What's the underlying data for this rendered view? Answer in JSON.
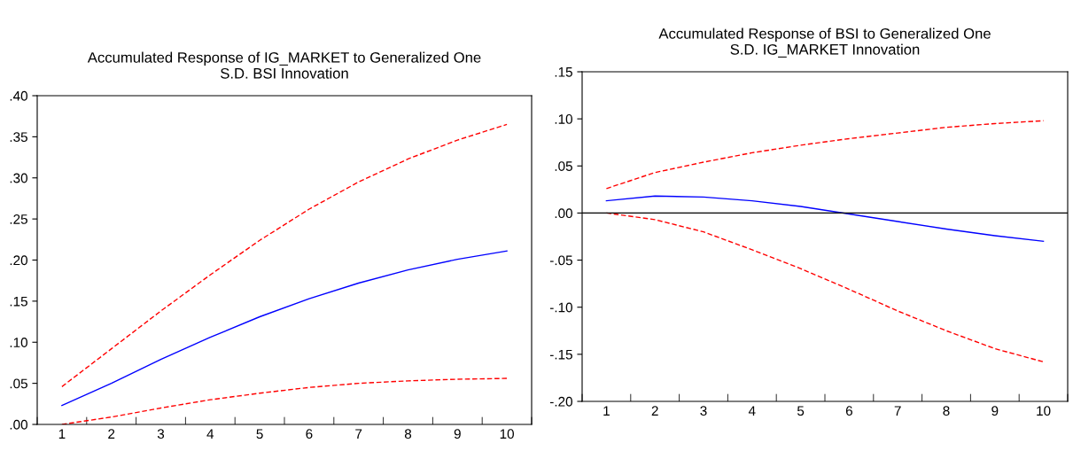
{
  "chart_data": [
    {
      "type": "line",
      "title": "Accumulated Response of IG_MARKET to Generalized One\nS.D. BSI Innovation",
      "categories": [
        "1",
        "2",
        "3",
        "4",
        "5",
        "6",
        "7",
        "8",
        "9",
        "10"
      ],
      "ylim": [
        0,
        0.4
      ],
      "yticks": [
        {
          "value": 0,
          "label": ".00"
        },
        {
          "value": 0.05,
          "label": ".05"
        },
        {
          "value": 0.1,
          "label": ".10"
        },
        {
          "value": 0.15,
          "label": ".15"
        },
        {
          "value": 0.2,
          "label": ".20"
        },
        {
          "value": 0.25,
          "label": ".25"
        },
        {
          "value": 0.3,
          "label": ".30"
        },
        {
          "value": 0.35,
          "label": ".35"
        },
        {
          "value": 0.4,
          "label": ".40"
        }
      ],
      "grid": false,
      "legend": false,
      "series": [
        {
          "color": "#0000ff",
          "line_style": "solid",
          "values": [
            0.023,
            0.05,
            0.079,
            0.106,
            0.131,
            0.153,
            0.172,
            0.188,
            0.201,
            0.211
          ]
        },
        {
          "color": "#ff0000",
          "line_style": "dashed",
          "values": [
            0.046,
            0.092,
            0.138,
            0.182,
            0.224,
            0.262,
            0.295,
            0.323,
            0.346,
            0.365
          ]
        },
        {
          "color": "#ff0000",
          "line_style": "dashed",
          "values": [
            0.0,
            0.009,
            0.02,
            0.03,
            0.038,
            0.045,
            0.05,
            0.053,
            0.055,
            0.056
          ]
        }
      ]
    },
    {
      "type": "line",
      "title": "Accumulated Response of BSI to Generalized One\nS.D. IG_MARKET Innovation",
      "categories": [
        "1",
        "2",
        "3",
        "4",
        "5",
        "6",
        "7",
        "8",
        "9",
        "10"
      ],
      "ylim": [
        -0.2,
        0.15
      ],
      "yticks": [
        {
          "value": -0.2,
          "label": "-.20"
        },
        {
          "value": -0.15,
          "label": "-.15"
        },
        {
          "value": -0.1,
          "label": "-.10"
        },
        {
          "value": -0.05,
          "label": "-.05"
        },
        {
          "value": 0,
          "label": ".00"
        },
        {
          "value": 0.05,
          "label": ".05"
        },
        {
          "value": 0.1,
          "label": ".10"
        },
        {
          "value": 0.15,
          "label": ".15"
        }
      ],
      "grid": false,
      "legend": false,
      "ref_lines": [
        {
          "axis": "y",
          "value": 0,
          "color": "#000000",
          "line_style": "solid"
        }
      ],
      "series": [
        {
          "color": "#0000ff",
          "line_style": "solid",
          "values": [
            0.013,
            0.018,
            0.017,
            0.013,
            0.007,
            -0.001,
            -0.009,
            -0.017,
            -0.024,
            -0.03
          ]
        },
        {
          "color": "#ff0000",
          "line_style": "dashed",
          "values": [
            0.026,
            0.043,
            0.054,
            0.064,
            0.072,
            0.079,
            0.085,
            0.091,
            0.095,
            0.098
          ]
        },
        {
          "color": "#ff0000",
          "line_style": "dashed",
          "values": [
            0.0,
            -0.007,
            -0.02,
            -0.039,
            -0.059,
            -0.081,
            -0.104,
            -0.125,
            -0.144,
            -0.158
          ]
        }
      ]
    }
  ]
}
